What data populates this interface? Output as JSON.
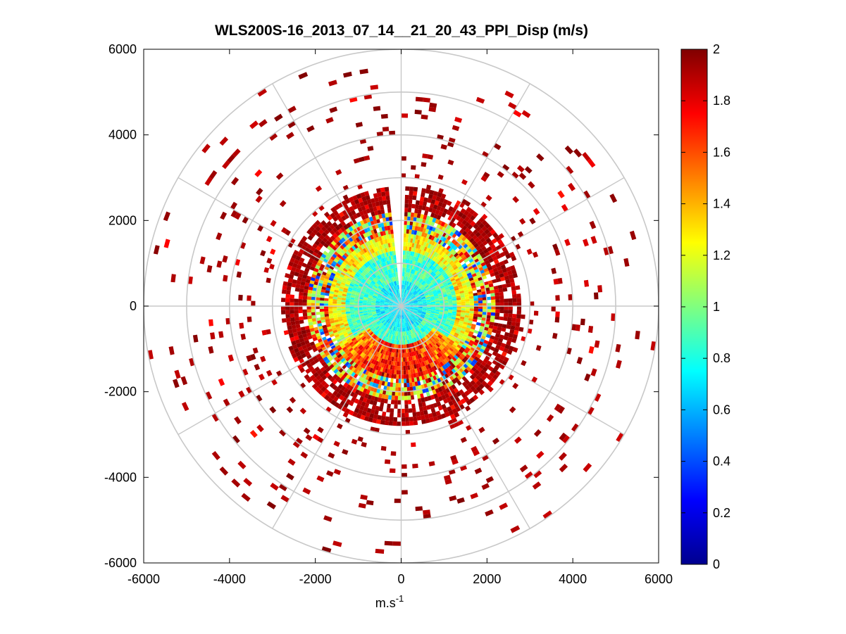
{
  "chart_data": {
    "type": "heatmap",
    "subtype": "polar-ppi-scan",
    "title": "WLS200S-16_2013_07_14__21_20_43_PPI_Disp (m/s)",
    "xlabel": "m.s",
    "xlabel_sup": "-1",
    "ylabel": "",
    "xlim": [
      -6000,
      6000
    ],
    "ylim": [
      -6000,
      6000
    ],
    "xticks": [
      -6000,
      -4000,
      -2000,
      0,
      2000,
      4000,
      6000
    ],
    "yticks": [
      -6000,
      -4000,
      -2000,
      0,
      2000,
      4000,
      6000
    ],
    "xtick_labels": [
      "-6000",
      "-4000",
      "-2000",
      "0",
      "2000",
      "4000",
      "6000"
    ],
    "ytick_labels": [
      "-6000",
      "-4000",
      "-2000",
      "0",
      "2000",
      "4000",
      "6000"
    ],
    "polar_grid_radii": [
      1000,
      2000,
      3000,
      4000,
      5000,
      6000
    ],
    "polar_grid_angles_deg": [
      0,
      30,
      60,
      90,
      120,
      150,
      180,
      210,
      240,
      270,
      300,
      330
    ],
    "colorbar": {
      "min": 0,
      "max": 2,
      "ticks": [
        0,
        0.2,
        0.4,
        0.6,
        0.8,
        1,
        1.2,
        1.4,
        1.6,
        1.8,
        2
      ],
      "tick_labels": [
        "0",
        "0.2",
        "0.4",
        "0.6",
        "0.8",
        "1",
        "1.2",
        "1.4",
        "1.6",
        "1.8",
        "2"
      ],
      "colormap": "jet"
    },
    "range_bands_m": [
      {
        "r0": 0,
        "r1": 1700,
        "typical_value": 0.72,
        "coverage": 1.0
      },
      {
        "r0": 1700,
        "r1": 2200,
        "typical_value": 1.45,
        "coverage": 0.95
      },
      {
        "r0": 2200,
        "r1": 2800,
        "typical_value": 1.9,
        "coverage": 0.8
      },
      {
        "r0": 2800,
        "r1": 6000,
        "typical_value": 2.0,
        "coverage": 0.08
      }
    ],
    "scan_gap_azimuth_deg": [
      -5,
      1
    ],
    "scan_gap_max_range_m": 3000
  },
  "colors": {
    "grid": "#c8c8c8",
    "axis": "#000000",
    "background": "#ffffff"
  }
}
